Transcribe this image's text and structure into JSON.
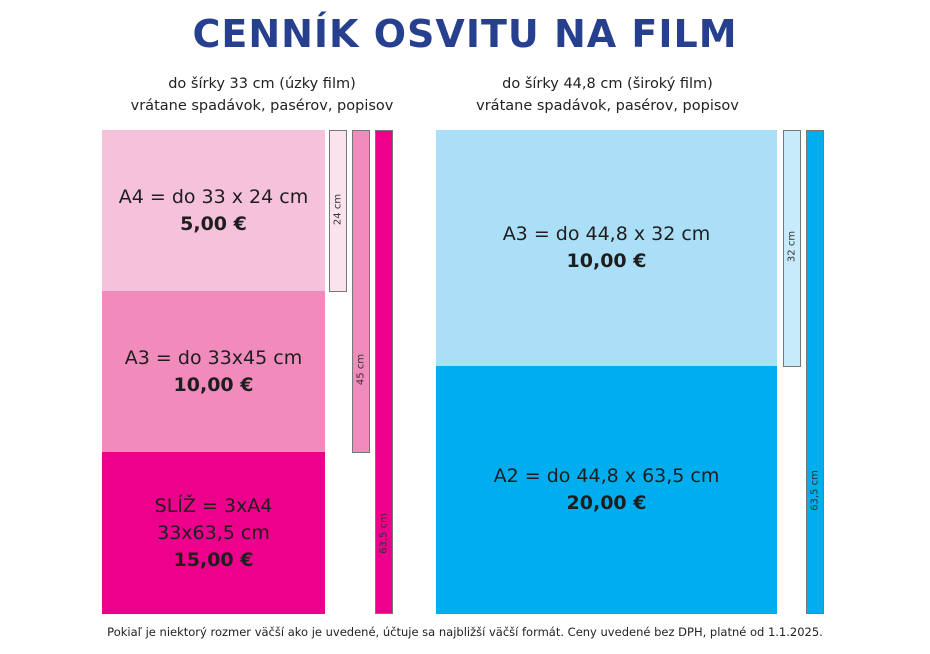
{
  "title": "CENNÍK OSVITU NA FILM",
  "narrow": {
    "subtitle_line1": "do šírky 33 cm (úzky film)",
    "subtitle_line2": "vrátane spadávok, pasérov, popisov",
    "blocks": [
      {
        "line1": "A4 = do 33 x 24 cm",
        "line2": "",
        "price": "5,00 €",
        "color": "#f6c1da"
      },
      {
        "line1": "A3 = do 33x45 cm",
        "line2": "",
        "price": "10,00 €",
        "color": "#f08bbc"
      },
      {
        "line1": "SLÍŽ = 3xA4",
        "line2": "33x63,5 cm",
        "price": "15,00 €",
        "color": "#ec008c"
      }
    ],
    "bars": [
      {
        "label": "24 cm",
        "color": "#f6c1da"
      },
      {
        "label": "45 cm",
        "color": "#f08bbc"
      },
      {
        "label": "63,5 cm",
        "color": "#ec008c"
      }
    ]
  },
  "wide": {
    "subtitle_line1": "do šírky 44,8 cm (široký film)",
    "subtitle_line2": "vrátane spadávok, pasérov, popisov",
    "blocks": [
      {
        "line1": "A3 = do 44,8 x 32 cm",
        "price": "10,00 €",
        "color": "#abdff7"
      },
      {
        "line1": "A2 = do 44,8 x 63,5 cm",
        "price": "20,00 €",
        "color": "#00aeef"
      }
    ],
    "bars": [
      {
        "label": "32 cm",
        "color": "#c8ebfb"
      },
      {
        "label": "63,5 cm",
        "color": "#00aeef"
      }
    ]
  },
  "footnote": "Pokiaľ je niektorý rozmer väčší ako je uvedené, účtuje sa najbližší väčší formát. Ceny uvedené bez DPH, platné od 1.1.2025."
}
